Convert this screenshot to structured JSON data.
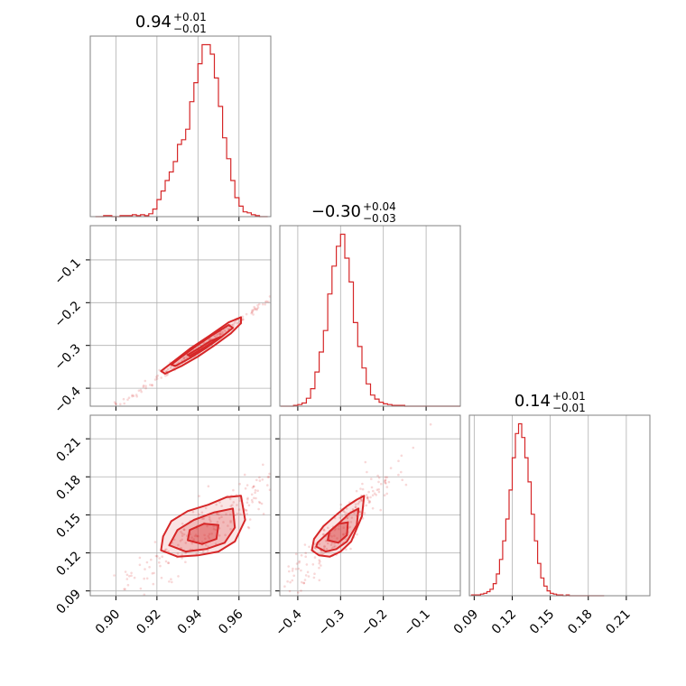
{
  "chart_data": {
    "type": "corner",
    "color": "#d62728",
    "params": [
      {
        "median": "0.94",
        "plus": "+0.01",
        "minus": "−0.01",
        "range": [
          0.8875,
          0.9755
        ],
        "ticks": [
          0.9,
          0.92,
          0.94,
          0.96
        ],
        "tick_labels": [
          "0.90",
          "0.92",
          "0.94",
          "0.96"
        ],
        "hist": {
          "bins": [
            0.89,
            0.892,
            0.894,
            0.896,
            0.898,
            0.9,
            0.902,
            0.904,
            0.906,
            0.908,
            0.91,
            0.912,
            0.914,
            0.916,
            0.918,
            0.92,
            0.922,
            0.924,
            0.926,
            0.928,
            0.93,
            0.932,
            0.934,
            0.936,
            0.938,
            0.94,
            0.942,
            0.944,
            0.946,
            0.948,
            0.95,
            0.952,
            0.954,
            0.956,
            0.958,
            0.96,
            0.962,
            0.964,
            0.966,
            0.968,
            0.97,
            0.972,
            0.974
          ],
          "counts": [
            0,
            0,
            1,
            1,
            0,
            0,
            1,
            1,
            1,
            2,
            1,
            2,
            1,
            3,
            8,
            18,
            27,
            38,
            47,
            58,
            76,
            81,
            92,
            121,
            141,
            161,
            181,
            181,
            171,
            146,
            116,
            83,
            61,
            38,
            20,
            11,
            5,
            4,
            2,
            1,
            0,
            0
          ]
        }
      },
      {
        "median": "−0.30",
        "plus": "+0.04",
        "minus": "−0.03",
        "range": [
          -0.442,
          -0.02
        ],
        "ticks": [
          -0.4,
          -0.3,
          -0.2,
          -0.1
        ],
        "tick_labels": [
          "−0.4",
          "−0.3",
          "−0.2",
          "−0.1"
        ],
        "hist": {
          "bins": [
            -0.44,
            -0.43,
            -0.42,
            -0.41,
            -0.4,
            -0.39,
            -0.38,
            -0.37,
            -0.36,
            -0.35,
            -0.34,
            -0.33,
            -0.32,
            -0.31,
            -0.3,
            -0.29,
            -0.28,
            -0.27,
            -0.26,
            -0.25,
            -0.24,
            -0.23,
            -0.22,
            -0.21,
            -0.2,
            -0.19,
            -0.18,
            -0.17,
            -0.16,
            -0.15,
            -0.14,
            -0.13,
            -0.12,
            -0.11,
            -0.1,
            -0.09,
            -0.08,
            -0.07,
            -0.06,
            -0.05,
            -0.04,
            -0.03,
            -0.02
          ],
          "counts": [
            0,
            0,
            0,
            1,
            2,
            4,
            10,
            22,
            43,
            68,
            95,
            141,
            176,
            201,
            216,
            186,
            156,
            105,
            75,
            48,
            28,
            14,
            9,
            5,
            3,
            2,
            1,
            1,
            1,
            0,
            0,
            0,
            0,
            0,
            0,
            0,
            0,
            0,
            0,
            0,
            0,
            0
          ]
        }
      },
      {
        "median": "0.14",
        "plus": "+0.01",
        "minus": "−0.01",
        "range": [
          0.0862,
          0.2286
        ],
        "ticks": [
          0.09,
          0.12,
          0.15,
          0.18,
          0.21
        ],
        "tick_labels": [
          "0.09",
          "0.12",
          "0.15",
          "0.18",
          "0.21"
        ],
        "hist": {
          "bins": [
            0.0875,
            0.09,
            0.0925,
            0.095,
            0.0975,
            0.1,
            0.1025,
            0.105,
            0.1075,
            0.11,
            0.1125,
            0.115,
            0.1175,
            0.12,
            0.1225,
            0.125,
            0.1275,
            0.13,
            0.1325,
            0.135,
            0.1375,
            0.14,
            0.1425,
            0.145,
            0.1475,
            0.15,
            0.1525,
            0.155,
            0.1575,
            0.16,
            0.1625,
            0.165,
            0.1675,
            0.17,
            0.1725,
            0.175,
            0.1775,
            0.18,
            0.1825,
            0.185,
            0.1875,
            0.19,
            0.1925
          ],
          "counts": [
            1,
            1,
            1,
            2,
            3,
            5,
            8,
            15,
            27,
            45,
            68,
            95,
            131,
            171,
            201,
            213,
            196,
            171,
            141,
            101,
            68,
            40,
            22,
            12,
            6,
            3,
            2,
            1,
            1,
            0,
            1,
            0,
            0,
            0,
            0,
            0,
            0,
            0,
            0,
            0,
            0,
            0
          ]
        }
      }
    ],
    "pairs": [
      {
        "x_param": 0,
        "y_param": 1,
        "center": [
          0.943,
          -0.3
        ],
        "contours": [
          {
            "level": "outer",
            "pts": [
              [
                0.924,
                -0.366
              ],
              [
                0.932,
                -0.348
              ],
              [
                0.94,
                -0.326
              ],
              [
                0.948,
                -0.3
              ],
              [
                0.956,
                -0.272
              ],
              [
                0.961,
                -0.248
              ],
              [
                0.961,
                -0.234
              ],
              [
                0.955,
                -0.246
              ],
              [
                0.946,
                -0.276
              ],
              [
                0.936,
                -0.308
              ],
              [
                0.928,
                -0.338
              ],
              [
                0.922,
                -0.36
              ]
            ]
          },
          {
            "level": "mid",
            "pts": [
              [
                0.929,
                -0.348
              ],
              [
                0.936,
                -0.33
              ],
              [
                0.944,
                -0.306
              ],
              [
                0.951,
                -0.282
              ],
              [
                0.957,
                -0.259
              ],
              [
                0.955,
                -0.252
              ],
              [
                0.947,
                -0.276
              ],
              [
                0.939,
                -0.302
              ],
              [
                0.931,
                -0.33
              ],
              [
                0.927,
                -0.345
              ]
            ]
          },
          {
            "level": "inner",
            "pts": [
              [
                0.936,
                -0.325
              ],
              [
                0.942,
                -0.308
              ],
              [
                0.948,
                -0.29
              ],
              [
                0.951,
                -0.28
              ],
              [
                0.946,
                -0.29
              ],
              [
                0.94,
                -0.308
              ],
              [
                0.935,
                -0.322
              ]
            ]
          }
        ]
      },
      {
        "x_param": 0,
        "y_param": 2,
        "center": [
          0.943,
          0.138
        ],
        "contours": [
          {
            "level": "outer",
            "pts": [
              [
                0.922,
                0.122
              ],
              [
                0.93,
                0.117
              ],
              [
                0.94,
                0.118
              ],
              [
                0.95,
                0.121
              ],
              [
                0.958,
                0.129
              ],
              [
                0.963,
                0.146
              ],
              [
                0.961,
                0.165
              ],
              [
                0.954,
                0.164
              ],
              [
                0.945,
                0.158
              ],
              [
                0.935,
                0.153
              ],
              [
                0.927,
                0.145
              ],
              [
                0.923,
                0.133
              ]
            ]
          },
          {
            "level": "mid",
            "pts": [
              [
                0.926,
                0.126
              ],
              [
                0.934,
                0.121
              ],
              [
                0.944,
                0.123
              ],
              [
                0.953,
                0.128
              ],
              [
                0.958,
                0.14
              ],
              [
                0.957,
                0.155
              ],
              [
                0.948,
                0.152
              ],
              [
                0.938,
                0.146
              ],
              [
                0.93,
                0.138
              ]
            ]
          },
          {
            "level": "inner",
            "pts": [
              [
                0.935,
                0.13
              ],
              [
                0.942,
                0.127
              ],
              [
                0.949,
                0.131
              ],
              [
                0.95,
                0.142
              ],
              [
                0.943,
                0.143
              ],
              [
                0.936,
                0.138
              ]
            ]
          }
        ]
      },
      {
        "x_param": 1,
        "y_param": 2,
        "center": [
          -0.3,
          0.138
        ],
        "contours": [
          {
            "level": "outer",
            "pts": [
              [
                -0.367,
                0.122
              ],
              [
                -0.35,
                0.118
              ],
              [
                -0.325,
                0.117
              ],
              [
                -0.3,
                0.121
              ],
              [
                -0.275,
                0.129
              ],
              [
                -0.25,
                0.149
              ],
              [
                -0.245,
                0.165
              ],
              [
                -0.262,
                0.162
              ],
              [
                -0.285,
                0.157
              ],
              [
                -0.31,
                0.15
              ],
              [
                -0.34,
                0.141
              ],
              [
                -0.362,
                0.131
              ]
            ]
          },
          {
            "level": "mid",
            "pts": [
              [
                -0.357,
                0.125
              ],
              [
                -0.335,
                0.121
              ],
              [
                -0.31,
                0.123
              ],
              [
                -0.285,
                0.129
              ],
              [
                -0.262,
                0.142
              ],
              [
                -0.258,
                0.155
              ],
              [
                -0.28,
                0.151
              ],
              [
                -0.305,
                0.143
              ],
              [
                -0.335,
                0.134
              ],
              [
                -0.354,
                0.128
              ]
            ]
          },
          {
            "level": "inner",
            "pts": [
              [
                -0.33,
                0.13
              ],
              [
                -0.305,
                0.128
              ],
              [
                -0.285,
                0.134
              ],
              [
                -0.283,
                0.144
              ],
              [
                -0.305,
                0.143
              ],
              [
                -0.326,
                0.137
              ]
            ]
          }
        ]
      }
    ]
  }
}
